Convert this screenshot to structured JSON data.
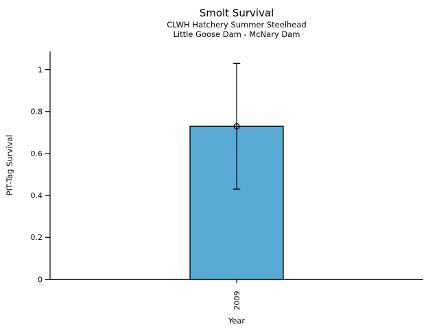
{
  "figure": {
    "background_color": "#ffffff",
    "axis_color": "#000000",
    "text_color": "#000000"
  },
  "chart_data": {
    "type": "bar",
    "title": "Smolt Survival",
    "subtitle": [
      "CLWH Hatchery Summer Steelhead",
      "Little Goose Dam - McNary Dam"
    ],
    "xlabel": "Year",
    "ylabel": "PIT-Tag Survival",
    "categories": [
      "2009"
    ],
    "values": [
      0.73
    ],
    "error_low": [
      0.43
    ],
    "error_high": [
      1.03
    ],
    "yticks": [
      0,
      0.2,
      0.4,
      0.6,
      0.8,
      1
    ],
    "ytick_labels": [
      "0",
      "0.2",
      "0.4",
      "0.6",
      "0.8",
      "1"
    ],
    "ylim": [
      0,
      1.087
    ],
    "grid": false,
    "legend": "none",
    "bar_color": "#58A9D4",
    "bar_edge_color": "#000000",
    "error_bar_color": "#000000",
    "marker": "open-circle",
    "x_tick_label_rotation": 90
  }
}
